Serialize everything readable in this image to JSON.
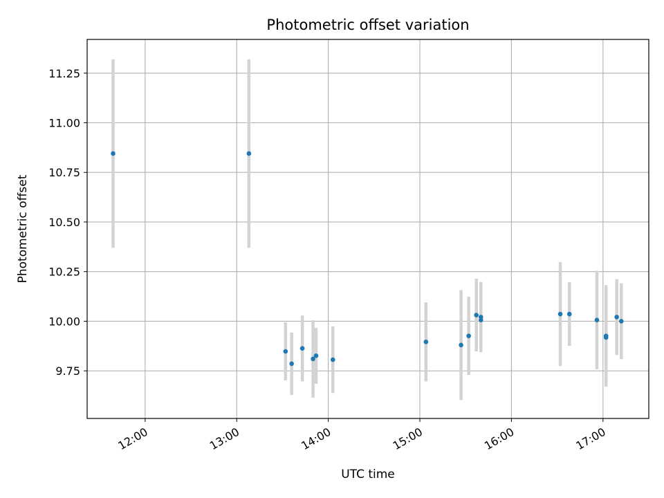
{
  "chart_data": {
    "type": "scatter",
    "title": "Photometric offset variation",
    "xlabel": "UTC time",
    "ylabel": "Photometric offset",
    "x_unit": "UTC time of day (HH:MM)",
    "xlim": [
      "11:22",
      "17:30"
    ],
    "ylim": [
      9.51,
      11.42
    ],
    "grid": true,
    "x_ticks": [
      "12:00",
      "13:00",
      "14:00",
      "15:00",
      "16:00",
      "17:00"
    ],
    "y_ticks": [
      9.75,
      10.0,
      10.25,
      10.5,
      10.75,
      11.0,
      11.25
    ],
    "y_tick_labels": [
      "9.75",
      "10.00",
      "10.25",
      "10.50",
      "10.75",
      "11.00",
      "11.25"
    ],
    "marker_color": "#1f77b4",
    "errorbar_color": "#d3d3d3",
    "points": [
      {
        "time": "11:39",
        "y": 10.845,
        "err": 0.475
      },
      {
        "time": "13:08",
        "y": 10.845,
        "err": 0.475
      },
      {
        "time": "13:32",
        "y": 9.848,
        "err": 0.146
      },
      {
        "time": "13:36",
        "y": 9.786,
        "err": 0.157
      },
      {
        "time": "13:43",
        "y": 9.863,
        "err": 0.166
      },
      {
        "time": "13:50",
        "y": 9.81,
        "err": 0.195
      },
      {
        "time": "13:52",
        "y": 9.826,
        "err": 0.141
      },
      {
        "time": "14:03",
        "y": 9.806,
        "err": 0.168
      },
      {
        "time": "15:04",
        "y": 9.896,
        "err": 0.199
      },
      {
        "time": "15:27",
        "y": 9.88,
        "err": 0.277
      },
      {
        "time": "15:32",
        "y": 9.926,
        "err": 0.197
      },
      {
        "time": "15:37",
        "y": 10.031,
        "err": 0.183
      },
      {
        "time": "15:40",
        "y": 10.021,
        "err": 0.177
      },
      {
        "time": "15:40",
        "y": 10.006,
        "err": 0.0
      },
      {
        "time": "16:32",
        "y": 10.036,
        "err": 0.262
      },
      {
        "time": "16:38",
        "y": 10.036,
        "err": 0.16
      },
      {
        "time": "16:56",
        "y": 10.006,
        "err": 0.248
      },
      {
        "time": "17:02",
        "y": 9.926,
        "err": 0.256
      },
      {
        "time": "17:02",
        "y": 9.918,
        "err": 0.0
      },
      {
        "time": "17:09",
        "y": 10.021,
        "err": 0.191
      },
      {
        "time": "17:12",
        "y": 10.0,
        "err": 0.191
      }
    ]
  }
}
